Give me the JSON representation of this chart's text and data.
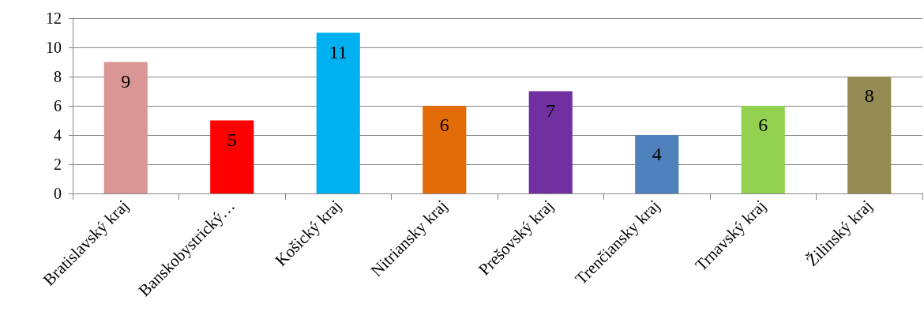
{
  "chart_data": {
    "type": "bar",
    "categories": [
      "Bratislavský kraj",
      "Banskobystrický…",
      "Košický kraj",
      "Nitriansky kraj",
      "Prešovský kraj",
      "Trenčiansky kraj",
      "Trnavský kraj",
      "Žilinský kraj"
    ],
    "values": [
      9,
      5,
      11,
      6,
      7,
      4,
      6,
      8
    ],
    "colors": [
      "#d99694",
      "#ff0000",
      "#00b0f0",
      "#e36c09",
      "#7030a0",
      "#4f81bd",
      "#92d050",
      "#948a54"
    ],
    "ylim": [
      0,
      12
    ],
    "yticks": [
      0,
      2,
      4,
      6,
      8,
      10,
      12
    ],
    "grid": "y",
    "data_labels": true
  }
}
